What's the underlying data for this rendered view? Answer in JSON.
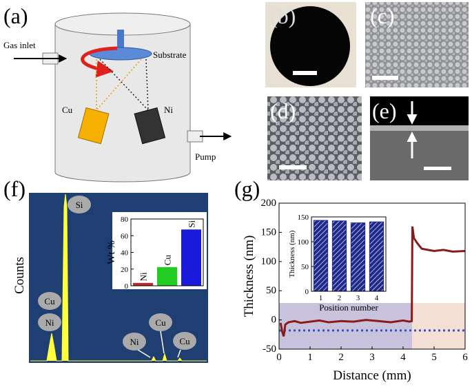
{
  "panel_labels": [
    "(a)",
    "(b)",
    "(c)",
    "(d)",
    "(e)",
    "(f)",
    "(g)"
  ],
  "diagram": {
    "gas_inlet": "Gas inlet",
    "substrate": "Substrate",
    "cu": "Cu",
    "ni": "Ni",
    "pump": "Pump"
  },
  "eds": {
    "y_label": "Counts",
    "peak_labels": [
      "Si",
      "Cu",
      "Ni",
      "Ni",
      "Cu",
      "Cu"
    ]
  },
  "chart_data": [
    {
      "type": "bar",
      "y_label": "Wt %",
      "categories": [
        "Ni",
        "Cu",
        "Si"
      ],
      "values": [
        3,
        22,
        67
      ],
      "colors": [
        "#c0282d",
        "#22cc22",
        "#1a1adb"
      ],
      "ylim": [
        0,
        80
      ],
      "yticks": [
        0,
        20,
        40,
        60,
        80
      ]
    },
    {
      "type": "line",
      "x_label": "Distance (mm)",
      "y_label": "Thickness (nm)",
      "xlim": [
        0,
        6
      ],
      "xticks": [
        0,
        1,
        2,
        3,
        4,
        5,
        6
      ],
      "ylim": [
        -50,
        200
      ],
      "yticks": [
        -50,
        0,
        50,
        100,
        150,
        200
      ],
      "reference_line": -18,
      "reference_color": "#3a50c8",
      "series": [
        {
          "color": "#8b1a1a",
          "x": [
            0.05,
            0.1,
            0.15,
            0.2,
            0.3,
            0.5,
            0.7,
            1,
            1.3,
            1.6,
            2,
            2.4,
            2.8,
            3.2,
            3.6,
            4,
            4.2,
            4.28,
            4.3,
            4.35,
            4.45,
            4.6,
            4.8,
            5,
            5.3,
            5.6,
            6
          ],
          "values": [
            -5,
            -20,
            -28,
            -8,
            -4,
            -2,
            -5,
            -3,
            -1,
            -4,
            -2,
            -3,
            0,
            -2,
            -4,
            -1,
            -3,
            -2,
            160,
            140,
            132,
            122,
            120,
            118,
            120,
            117,
            118
          ]
        }
      ]
    },
    {
      "type": "bar",
      "x_label": "Position number",
      "y_label": "Thickness (nm)",
      "categories": [
        "1",
        "2",
        "3",
        "4"
      ],
      "values": [
        143,
        142,
        138,
        140
      ],
      "color": "#1f2a8c",
      "ylim": [
        0,
        150
      ],
      "yticks": [
        0,
        50,
        100,
        150
      ]
    }
  ]
}
